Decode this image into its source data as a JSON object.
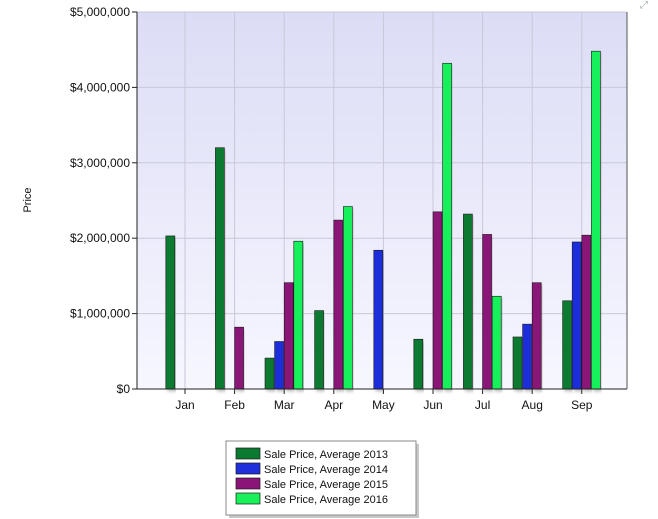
{
  "chart_data": {
    "type": "bar",
    "ylabel": "Price",
    "xlabel": "",
    "ylim": [
      0,
      5000000
    ],
    "yticks": [
      {
        "value": 0,
        "label": "$0"
      },
      {
        "value": 1000000,
        "label": "$1,000,000"
      },
      {
        "value": 2000000,
        "label": "$2,000,000"
      },
      {
        "value": 3000000,
        "label": "$3,000,000"
      },
      {
        "value": 4000000,
        "label": "$4,000,000"
      },
      {
        "value": 5000000,
        "label": "$5,000,000"
      }
    ],
    "categories": [
      "Jan",
      "Feb",
      "Mar",
      "Apr",
      "May",
      "Jun",
      "Jul",
      "Aug",
      "Sep"
    ],
    "grid": true,
    "legend_position": "bottom-center",
    "series": [
      {
        "name": "Sale Price, Average 2013",
        "color": "#0a7a30",
        "values": [
          2030000,
          3200000,
          410000,
          1040000,
          null,
          660000,
          2320000,
          690000,
          1170000
        ]
      },
      {
        "name": "Sale Price, Average 2014",
        "color": "#1f2fdc",
        "values": [
          null,
          null,
          630000,
          null,
          1840000,
          null,
          null,
          860000,
          1950000
        ]
      },
      {
        "name": "Sale Price, Average 2015",
        "color": "#8a1478",
        "values": [
          null,
          820000,
          1410000,
          2240000,
          null,
          2350000,
          2050000,
          1410000,
          2040000
        ]
      },
      {
        "name": "Sale Price, Average 2016",
        "color": "#19f05a",
        "values": [
          null,
          null,
          1960000,
          2420000,
          null,
          4320000,
          1230000,
          null,
          4480000
        ]
      }
    ]
  },
  "ui": {
    "expand_icon": "expand-icon"
  }
}
